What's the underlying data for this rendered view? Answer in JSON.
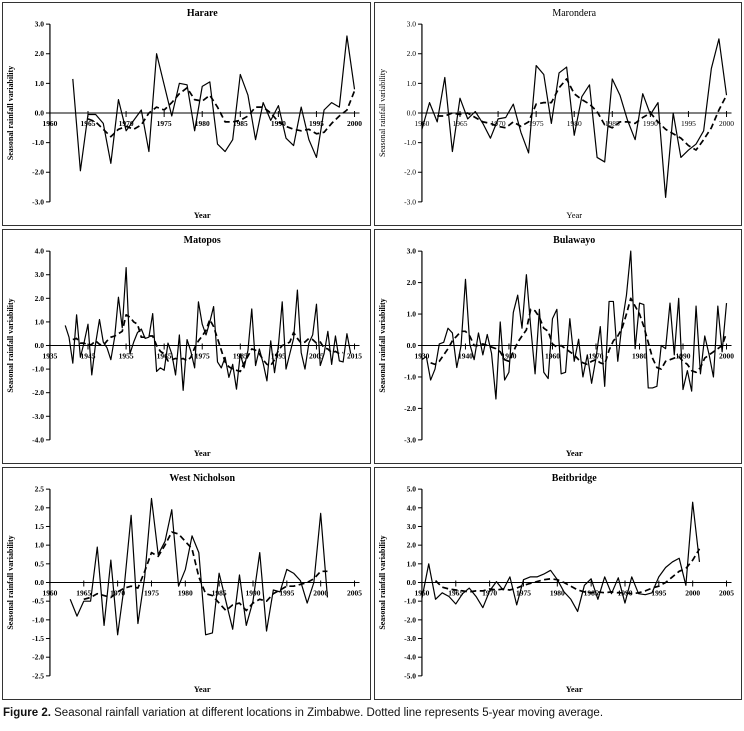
{
  "figure": {
    "caption_label": "Figure 2.",
    "caption_text": " Seasonal rainfall variation at different locations in Zimbabwe. Dotted line represents 5-year moving average."
  },
  "colors": {
    "line": "#000000",
    "text": "#000000",
    "panel_border": "#333333",
    "background": "#ffffff"
  },
  "chart_data": [
    {
      "type": "line",
      "title": "Harare",
      "title_weight": "bold",
      "font_weight": "bold",
      "xlabel": "Year",
      "ylabel": "Seasonal rainfall variability",
      "xlim": [
        1960,
        2000
      ],
      "xtick_step": 5,
      "ylim": [
        -3,
        3
      ],
      "ytick_step": 1,
      "grid": false,
      "legend": "none",
      "series": [
        {
          "name": "Seasonal rainfall variability",
          "style": "solid",
          "x0": 1963,
          "values": [
            1.15,
            -1.95,
            -0.05,
            -0.05,
            -0.35,
            -1.7,
            0.45,
            -0.6,
            -0.25,
            0.1,
            -1.3,
            2.0,
            0.95,
            -0.1,
            1.0,
            0.95,
            -0.6,
            0.9,
            1.05,
            -1.05,
            -1.3,
            -0.9,
            1.3,
            0.6,
            -0.9,
            0.35,
            -0.25,
            0.25,
            -0.85,
            -1.1,
            0.2,
            -0.9,
            -1.5,
            0.1,
            0.35,
            0.2,
            2.6,
            0.8
          ]
        },
        {
          "name": "5-year moving average",
          "style": "dashed",
          "x0": 1965,
          "values": [
            -0.2,
            -0.3,
            -0.55,
            -0.8,
            -0.55,
            -0.45,
            -0.55,
            -0.4,
            0.0,
            0.2,
            0.1,
            0.35,
            0.65,
            0.85,
            0.45,
            0.4,
            0.6,
            0.2,
            -0.3,
            -0.3,
            -0.25,
            -0.1,
            0.2,
            0.2,
            0.0,
            -0.3,
            -0.45,
            -0.55,
            -0.6,
            -0.55,
            -0.7,
            -0.65,
            -0.35,
            -0.1,
            0.1,
            0.75
          ]
        }
      ]
    },
    {
      "type": "line",
      "title": "Marondera",
      "title_weight": "normal",
      "font_weight": "normal",
      "xlabel": "Year",
      "ylabel": "Seasonal rainfall variability",
      "xlim": [
        1960,
        2000
      ],
      "xtick_step": 5,
      "ylim": [
        -3,
        3
      ],
      "ytick_step": 1,
      "grid": false,
      "legend": "none",
      "series": [
        {
          "name": "Seasonal rainfall variability",
          "style": "solid",
          "x0": 1960,
          "values": [
            -0.55,
            0.35,
            -0.3,
            1.2,
            -1.3,
            0.5,
            -0.2,
            0.05,
            -0.35,
            -0.85,
            -0.2,
            -0.15,
            0.3,
            -0.65,
            -1.35,
            1.6,
            1.3,
            -0.35,
            1.35,
            1.55,
            -0.75,
            0.55,
            0.95,
            -1.5,
            -1.65,
            1.15,
            0.6,
            -0.25,
            -0.9,
            0.65,
            -0.05,
            0.35,
            -2.85,
            0.0,
            -1.5,
            -1.25,
            -1.05,
            -0.6,
            1.5,
            2.5,
            0.6
          ]
        },
        {
          "name": "5-year moving average",
          "style": "dashed",
          "x0": 1962,
          "values": [
            -0.1,
            -0.1,
            0.0,
            -0.05,
            0.0,
            -0.15,
            -0.3,
            -0.35,
            -0.45,
            -0.5,
            -0.3,
            -0.45,
            -0.3,
            0.3,
            0.35,
            0.35,
            0.85,
            1.15,
            0.65,
            0.45,
            0.3,
            0.05,
            -0.4,
            -0.5,
            -0.3,
            -0.3,
            -0.35,
            -0.15,
            0.0,
            -0.3,
            -0.55,
            -0.7,
            -0.85,
            -1.1,
            -1.25,
            -0.9,
            -0.5,
            0.1,
            0.6
          ]
        }
      ]
    },
    {
      "type": "line",
      "title": "Matopos",
      "title_weight": "bold",
      "font_weight": "bold",
      "xlabel": "Year",
      "ylabel": "Seasonal rainfall  variability",
      "xlim": [
        1935,
        2015
      ],
      "xtick_step": 10,
      "ylim": [
        -4,
        4
      ],
      "ytick_step": 1,
      "grid": false,
      "legend": "none",
      "series": [
        {
          "name": "Seasonal rainfall variability",
          "style": "solid",
          "x0": 1939,
          "values": [
            0.85,
            0.35,
            -0.75,
            1.3,
            -0.5,
            0.15,
            0.9,
            -1.25,
            0.1,
            1.1,
            0.15,
            -0.1,
            -0.6,
            0.35,
            2.05,
            0.75,
            3.3,
            -0.35,
            0.15,
            0.55,
            0.7,
            0.3,
            0.35,
            1.35,
            -1.1,
            -0.95,
            -1.05,
            0.1,
            -0.35,
            -1.25,
            0.45,
            -1.9,
            0.25,
            -0.25,
            -0.95,
            1.85,
            0.9,
            0.45,
            1.0,
            1.65,
            -0.7,
            -0.95,
            -0.5,
            -1.35,
            -0.8,
            -1.85,
            -0.35,
            -0.95,
            -0.2,
            1.55,
            -0.85,
            -0.15,
            -0.75,
            -1.5,
            0.2,
            -1.15,
            0.0,
            1.85,
            -1.0,
            -0.35,
            0.3,
            2.35,
            -0.3,
            -1.0,
            0.1,
            0.45,
            1.75,
            -0.85,
            -0.35,
            0.6,
            -0.8,
            0.4,
            -0.65,
            -0.7,
            0.5,
            -0.35
          ]
        },
        {
          "name": "5-year moving average",
          "style": "dashed",
          "x0": 1941,
          "values": [
            0.25,
            0.3,
            0.1,
            0.1,
            0.0,
            0.05,
            0.2,
            0.05,
            0.0,
            0.2,
            0.35,
            0.4,
            0.5,
            0.6,
            1.3,
            1.2,
            1.0,
            0.9,
            0.35,
            0.35,
            0.4,
            0.4,
            0.0,
            -0.25,
            -0.35,
            -0.65,
            -0.6,
            -0.55,
            -0.6,
            -0.55,
            -0.65,
            -0.5,
            -0.1,
            0.2,
            0.4,
            0.65,
            1.1,
            0.8,
            0.3,
            -0.2,
            -0.7,
            -0.9,
            -1.0,
            -1.05,
            -1.1,
            -0.75,
            -0.45,
            -0.15,
            -0.2,
            -0.35,
            -0.6,
            -0.8,
            -0.85,
            -0.6,
            -0.2,
            0.0,
            0.05,
            0.15,
            0.55,
            0.3,
            0.1,
            0.15,
            0.3,
            0.25,
            0.1,
            0.15,
            -0.1,
            -0.15,
            -0.3,
            -0.25,
            -0.35,
            -0.3
          ]
        }
      ]
    },
    {
      "type": "line",
      "title": "Bulawayo",
      "title_weight": "bold",
      "font_weight": "bold",
      "xlabel": "Year",
      "ylabel": "Seasonal rainfall  variability",
      "xlim": [
        1930,
        2000
      ],
      "xtick_step": 10,
      "ylim": [
        -3,
        3
      ],
      "ytick_step": 1,
      "grid": false,
      "legend": "none",
      "series": [
        {
          "name": "Seasonal rainfall variability",
          "style": "solid",
          "x0": 1930,
          "values": [
            -0.45,
            -0.35,
            -1.1,
            -0.75,
            0.05,
            0.1,
            0.55,
            0.4,
            -0.7,
            0.0,
            2.1,
            0.05,
            -0.45,
            0.4,
            -0.3,
            0.35,
            -0.25,
            -1.7,
            0.75,
            -1.1,
            -0.85,
            1.05,
            1.6,
            0.55,
            2.25,
            0.6,
            -0.9,
            1.15,
            -0.85,
            -1.05,
            0.85,
            1.15,
            -0.9,
            -0.85,
            0.85,
            -0.5,
            0.2,
            -1.0,
            -0.3,
            -1.2,
            -0.4,
            0.6,
            -1.3,
            1.4,
            1.4,
            -0.5,
            0.7,
            1.6,
            3.0,
            -0.1,
            1.35,
            1.3,
            -1.35,
            -1.35,
            -1.3,
            0.0,
            -0.1,
            1.35,
            -0.3,
            1.5,
            -1.4,
            -0.8,
            -1.45,
            1.25,
            -0.9,
            0.3,
            -0.3,
            -1.0,
            1.25,
            -0.2,
            1.35
          ]
        },
        {
          "name": "5-year moving average",
          "style": "dashed",
          "x0": 1932,
          "values": [
            -0.55,
            -0.6,
            -0.5,
            -0.3,
            -0.1,
            0.15,
            0.3,
            0.45,
            0.45,
            0.3,
            0.0,
            0.0,
            0.05,
            0.0,
            -0.05,
            -0.1,
            -0.2,
            -0.45,
            -0.5,
            -0.2,
            0.1,
            0.3,
            0.5,
            1.15,
            1.1,
            0.9,
            0.55,
            0.45,
            0.05,
            -0.05,
            0.0,
            -0.1,
            -0.2,
            -0.3,
            -0.45,
            -0.55,
            -0.6,
            -0.5,
            -0.45,
            -0.55,
            -0.6,
            -0.15,
            0.15,
            0.3,
            0.55,
            1.0,
            1.5,
            1.25,
            1.0,
            0.6,
            0.1,
            -0.4,
            -0.7,
            -0.75,
            -0.5,
            -0.45,
            -0.4,
            -0.35,
            -0.5,
            -0.6,
            -0.8,
            -0.85,
            -0.7,
            -0.4,
            -0.3,
            -0.2,
            -0.1,
            0.0,
            0.4
          ]
        }
      ]
    },
    {
      "type": "line",
      "title": "West Nicholson",
      "title_weight": "bold",
      "font_weight": "bold",
      "xlabel": "Year",
      "ylabel": "Seasonal rainfall  variability",
      "xlim": [
        1960,
        2005
      ],
      "xtick_step": 5,
      "ylim": [
        -2.5,
        2.5
      ],
      "ytick_step": 0.5,
      "grid": false,
      "legend": "none",
      "series": [
        {
          "name": "Seasonal rainfall variability",
          "style": "solid",
          "x0": 1963,
          "values": [
            -0.45,
            -0.9,
            -0.5,
            -0.5,
            0.95,
            -1.15,
            0.6,
            -1.4,
            -0.05,
            1.8,
            -1.1,
            0.15,
            2.25,
            0.75,
            1.1,
            1.95,
            -0.1,
            0.35,
            1.25,
            0.8,
            -1.4,
            -1.35,
            0.25,
            -0.5,
            -1.25,
            0.2,
            -1.15,
            -0.5,
            0.8,
            -1.3,
            -0.2,
            -0.25,
            0.35,
            0.25,
            0.05,
            -0.55,
            0.0,
            1.85,
            -0.4
          ]
        },
        {
          "name": "5-year moving average",
          "style": "dashed",
          "x0": 1965,
          "values": [
            -0.45,
            -0.4,
            -0.3,
            -0.35,
            -0.4,
            -0.25,
            -0.15,
            -0.1,
            -0.15,
            0.3,
            0.8,
            0.7,
            1.0,
            1.35,
            1.3,
            1.1,
            0.9,
            0.15,
            -0.3,
            -0.35,
            -0.55,
            -0.75,
            -0.6,
            -0.55,
            -0.75,
            -0.55,
            -0.45,
            -0.5,
            -0.3,
            -0.2,
            -0.1,
            -0.1,
            -0.05,
            0.0,
            0.1,
            0.3,
            0.3
          ]
        }
      ]
    },
    {
      "type": "line",
      "title": "Beitbridge",
      "title_weight": "bold",
      "font_weight": "bold",
      "xlabel": "Year",
      "ylabel": "Seasonal rainfall  variability",
      "xlim": [
        1960,
        2005
      ],
      "xtick_step": 5,
      "ylim": [
        -5,
        5
      ],
      "ytick_step": 1,
      "grid": false,
      "legend": "none",
      "series": [
        {
          "name": "Seasonal rainfall variability",
          "style": "solid",
          "x0": 1960,
          "values": [
            -0.85,
            1.0,
            -0.9,
            -0.55,
            -0.75,
            -1.15,
            -0.6,
            -0.3,
            -0.75,
            -1.35,
            -0.45,
            0.05,
            -0.4,
            0.3,
            -1.2,
            0.15,
            0.3,
            0.3,
            0.45,
            0.65,
            0.15,
            -0.5,
            -0.9,
            -1.55,
            -0.15,
            0.2,
            -0.9,
            0.3,
            -0.6,
            0.25,
            -1.1,
            0.3,
            -0.6,
            -0.65,
            -0.55,
            0.3,
            0.8,
            1.1,
            1.3,
            -0.15,
            4.3,
            1.1
          ]
        },
        {
          "name": "5-year moving average",
          "style": "dashed",
          "x0": 1962,
          "values": [
            0.1,
            -0.25,
            -0.35,
            -0.4,
            -0.45,
            -0.5,
            -0.45,
            -0.45,
            -0.35,
            -0.4,
            -0.35,
            -0.4,
            -0.3,
            -0.15,
            -0.05,
            0.05,
            0.15,
            0.2,
            0.15,
            0.0,
            -0.2,
            -0.4,
            -0.5,
            -0.55,
            -0.5,
            -0.55,
            -0.5,
            -0.55,
            -0.55,
            -0.6,
            -0.55,
            -0.45,
            -0.3,
            -0.2,
            0.0,
            0.3,
            0.6,
            0.75,
            1.2,
            1.8
          ]
        }
      ]
    }
  ]
}
